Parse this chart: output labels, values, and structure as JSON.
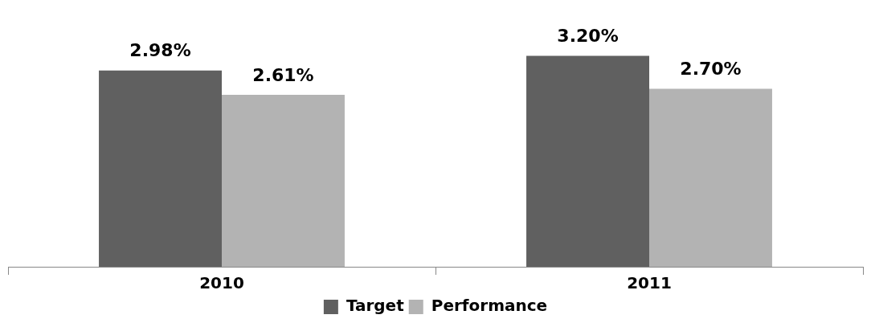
{
  "chart_data": {
    "type": "bar",
    "categories": [
      "2010",
      "2011"
    ],
    "series": [
      {
        "name": "Target",
        "color": "#606060",
        "values": [
          2.98,
          3.2
        ],
        "value_labels": [
          "2.98%",
          "3.20%"
        ]
      },
      {
        "name": "Performance",
        "color": "#b3b3b3",
        "values": [
          2.61,
          2.7
        ],
        "value_labels": [
          "2.61%",
          "2.70%"
        ]
      }
    ],
    "legend": "bottom",
    "grid": false
  }
}
